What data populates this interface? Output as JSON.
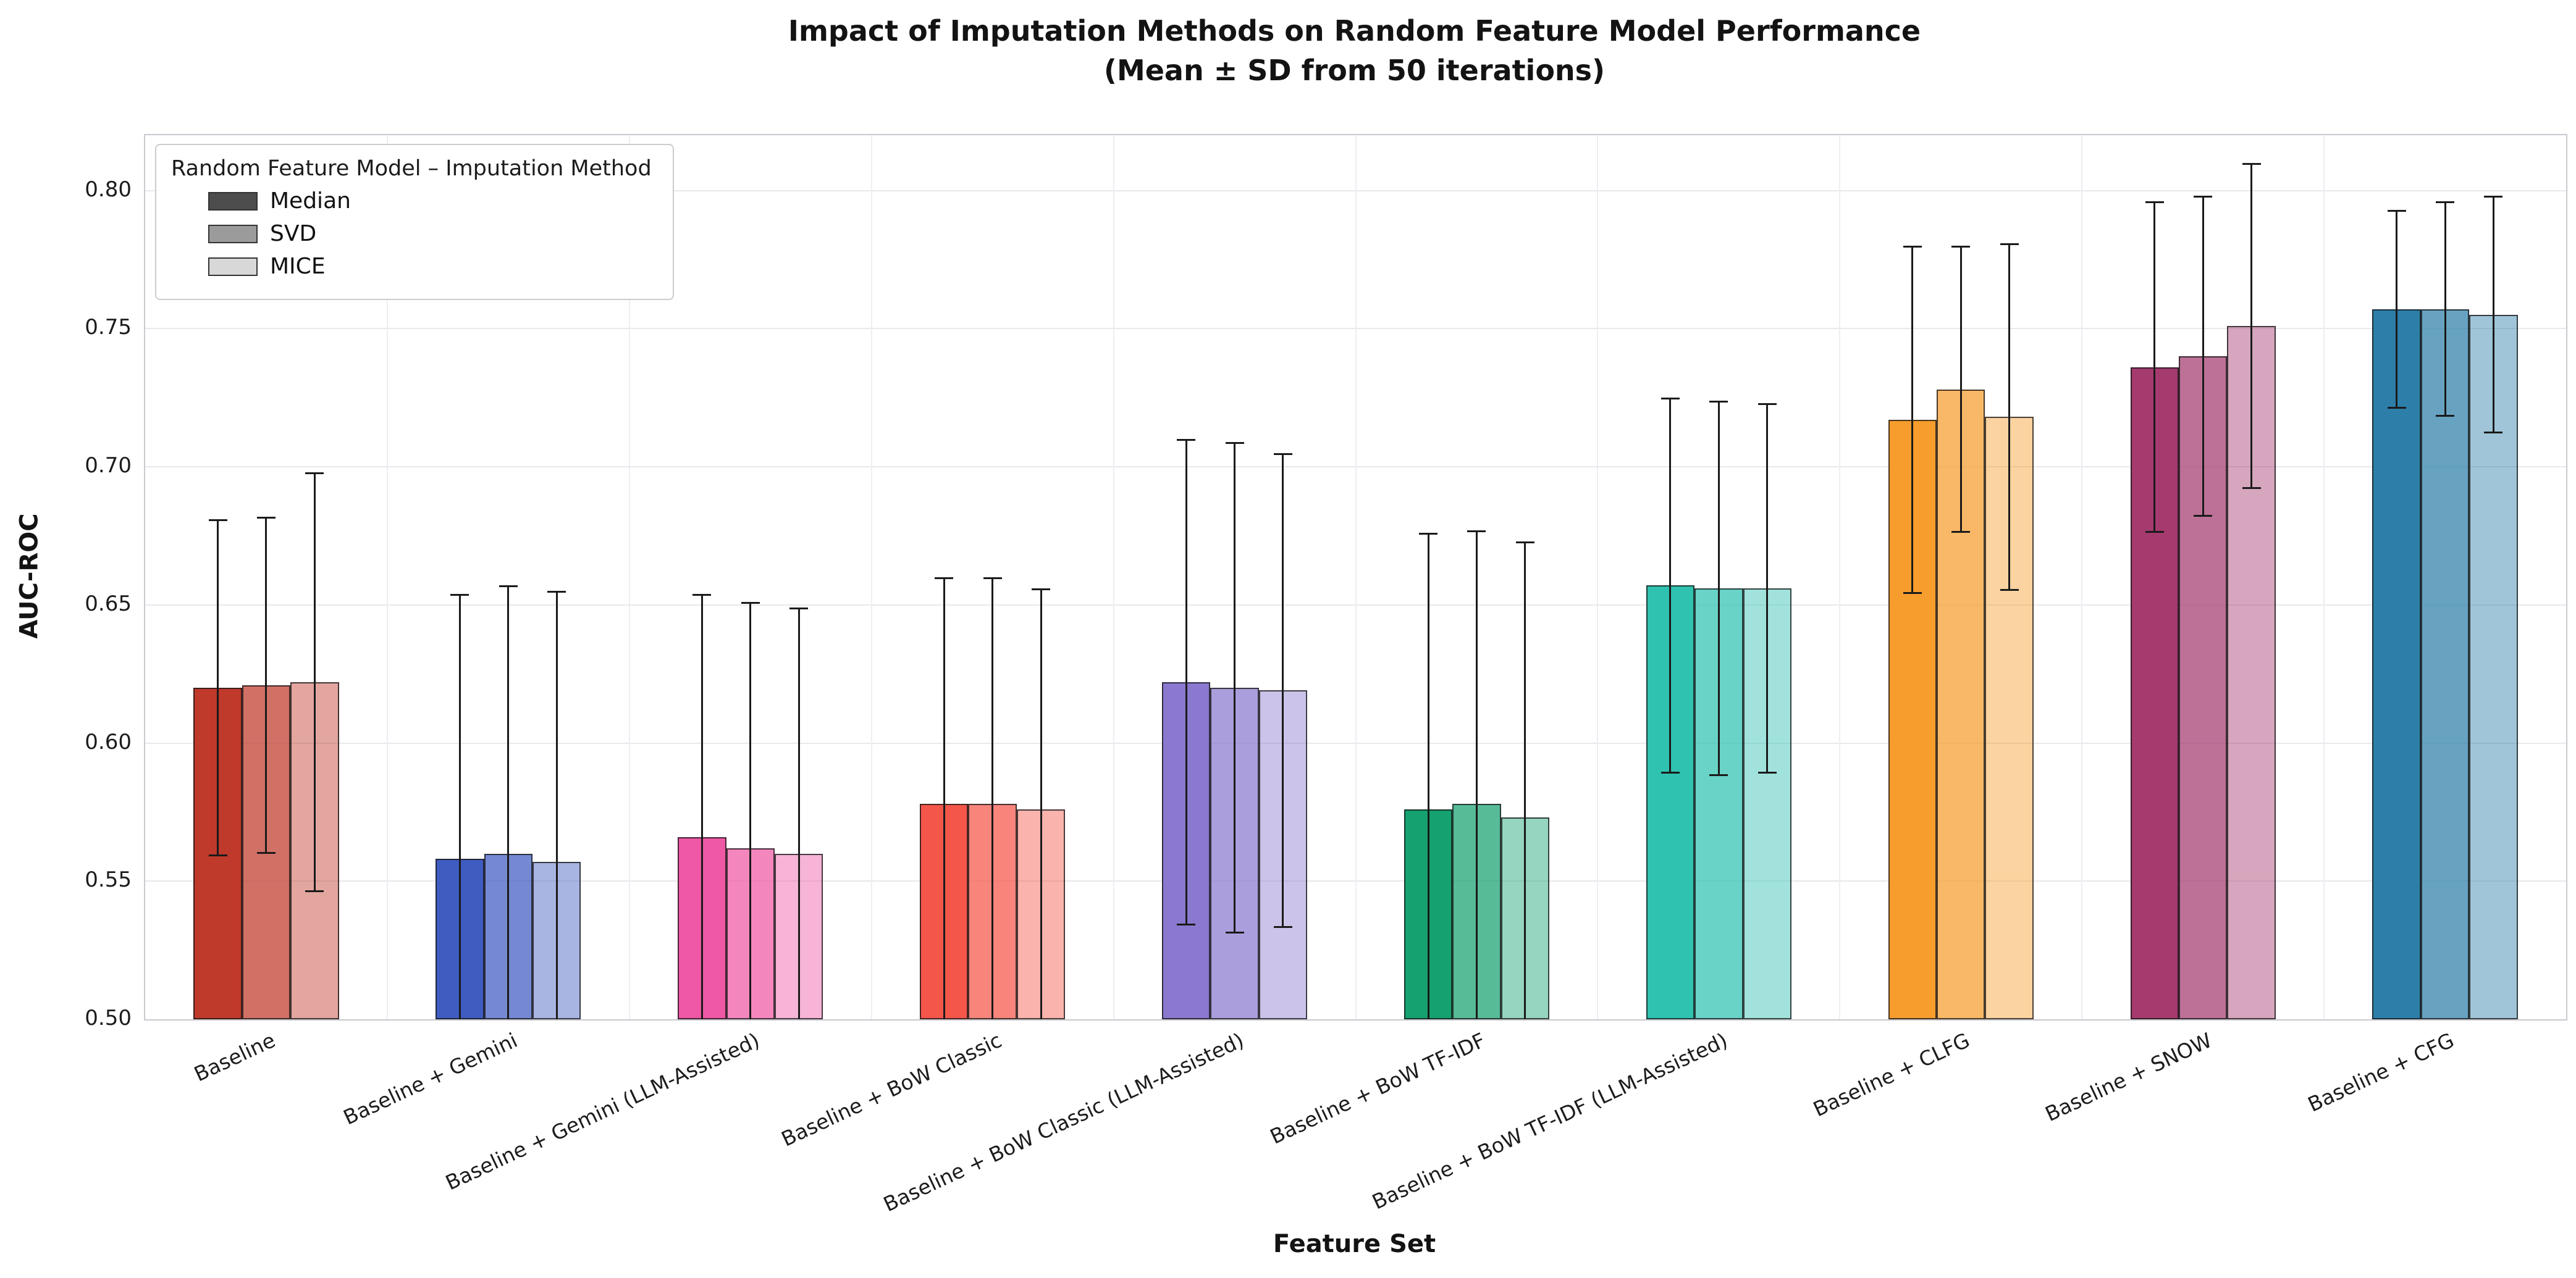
{
  "chart_data": {
    "type": "bar",
    "title": "Impact of Imputation Methods on Random Feature Model Performance",
    "subtitle": "(Mean ± SD from 50 iterations)",
    "xlabel": "Feature Set",
    "ylabel": "AUC-ROC",
    "ylim": [
      0.5,
      0.82
    ],
    "yticks": [
      0.5,
      0.55,
      0.6,
      0.65,
      0.7,
      0.75,
      0.8
    ],
    "grid": true,
    "legend": {
      "title": "Random Feature Model – Imputation Method",
      "position": "upper left",
      "entries": [
        {
          "label": "Median",
          "swatch": "#4d4d4d"
        },
        {
          "label": "SVD",
          "swatch": "#9b9b9b"
        },
        {
          "label": "MICE",
          "swatch": "#d8d8d8"
        }
      ]
    },
    "categories": [
      "Baseline",
      "Baseline + Gemini",
      "Baseline + Gemini (LLM-Assisted)",
      "Baseline + BoW Classic",
      "Baseline + BoW Classic (LLM-Assisted)",
      "Baseline + BoW TF-IDF",
      "Baseline + BoW TF-IDF (LLM-Assisted)",
      "Baseline + CLFG",
      "Baseline + SNOW",
      "Baseline + CFG"
    ],
    "group_colors": [
      "#bf3a2b",
      "#3f5cc0",
      "#ee58a4",
      "#f4564a",
      "#8b79cf",
      "#16a170",
      "#2fc2b1",
      "#f69d2d",
      "#a53a6f",
      "#2d7fa9"
    ],
    "series": [
      {
        "name": "Median",
        "opacity": 1.0,
        "means": [
          0.62,
          0.558,
          0.566,
          0.578,
          0.622,
          0.576,
          0.657,
          0.717,
          0.736,
          0.757
        ],
        "sds": [
          0.061,
          0.096,
          0.088,
          0.082,
          0.088,
          0.1,
          0.068,
          0.063,
          0.06,
          0.036
        ]
      },
      {
        "name": "SVD",
        "opacity": 0.72,
        "means": [
          0.621,
          0.56,
          0.562,
          0.578,
          0.62,
          0.578,
          0.656,
          0.728,
          0.74,
          0.757
        ],
        "sds": [
          0.061,
          0.097,
          0.089,
          0.082,
          0.089,
          0.099,
          0.068,
          0.052,
          0.058,
          0.039
        ]
      },
      {
        "name": "MICE",
        "opacity": 0.45,
        "means": [
          0.622,
          0.557,
          0.56,
          0.576,
          0.619,
          0.573,
          0.656,
          0.718,
          0.751,
          0.755
        ],
        "sds": [
          0.076,
          0.098,
          0.089,
          0.08,
          0.086,
          0.1,
          0.067,
          0.063,
          0.059,
          0.043
        ]
      }
    ]
  }
}
